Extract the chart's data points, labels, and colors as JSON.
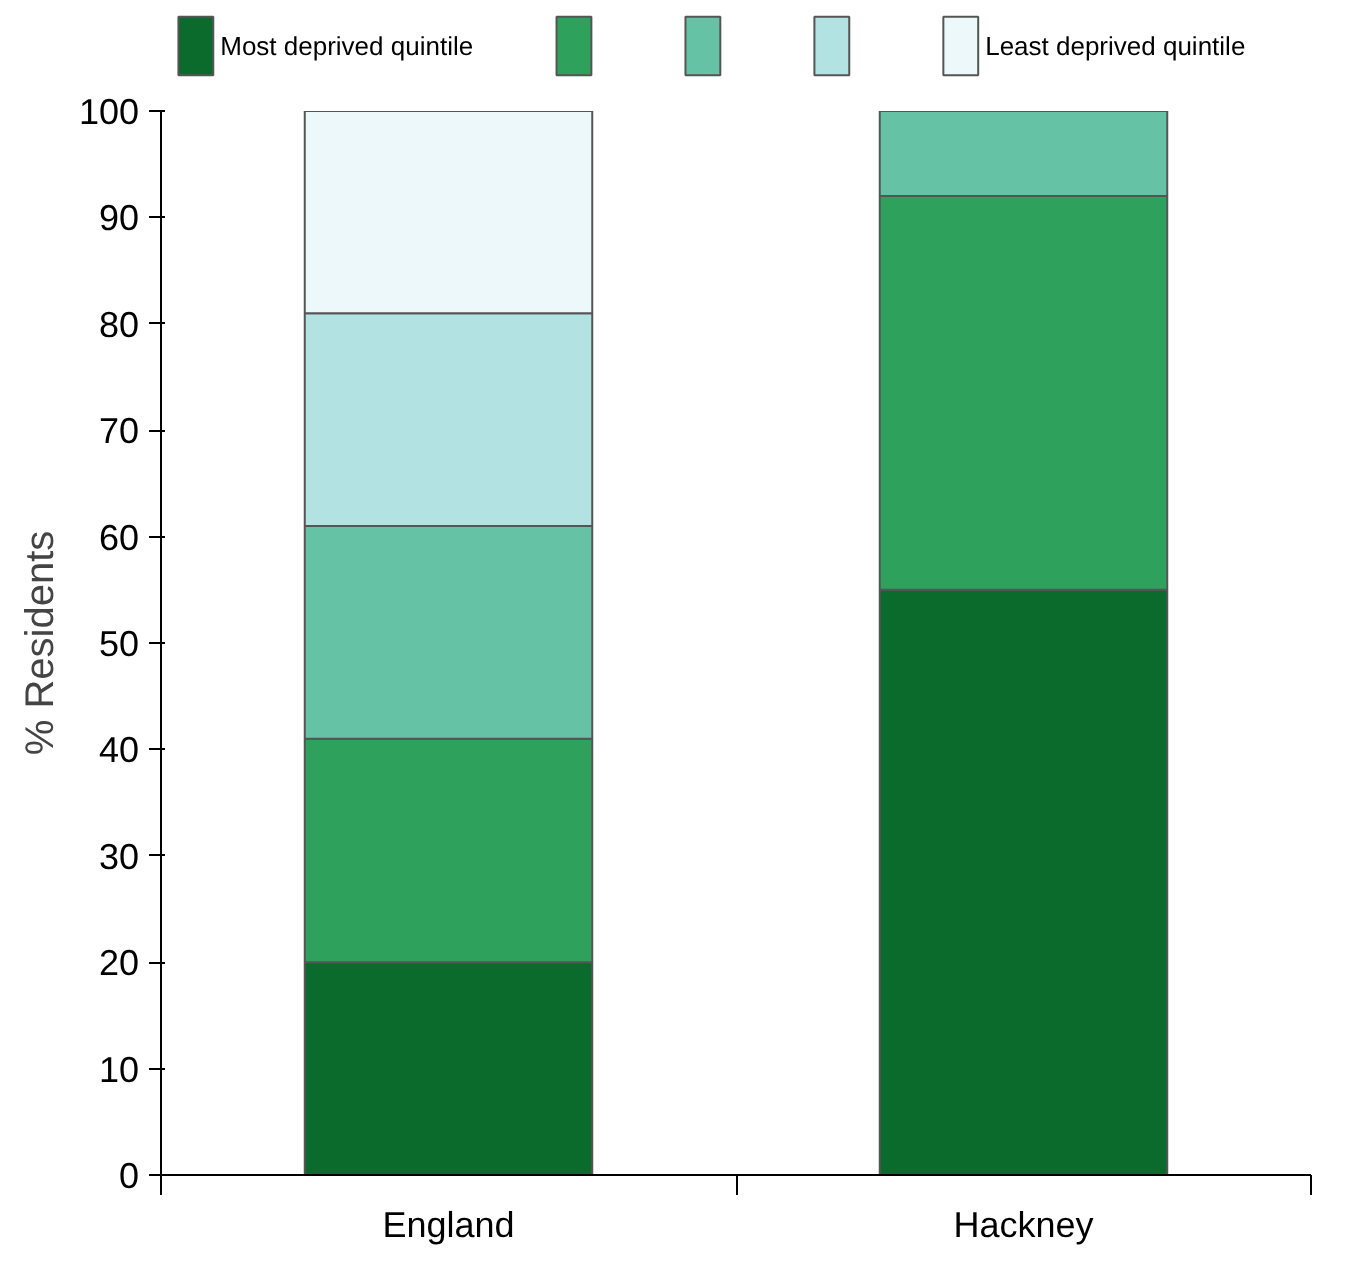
{
  "chart_data": {
    "type": "bar",
    "stacked": true,
    "ylabel": "% Residents",
    "categories": [
      "England",
      "Hackney"
    ],
    "ylim": [
      0,
      100
    ],
    "yticks": [
      0,
      10,
      20,
      30,
      40,
      50,
      60,
      70,
      80,
      90,
      100
    ],
    "legend": "top",
    "grid": false,
    "series": [
      {
        "name": "Most deprived quintile",
        "color": "#0a6b2c",
        "values": [
          20,
          55
        ]
      },
      {
        "color": "#2ea15c",
        "values": [
          21,
          37
        ]
      },
      {
        "color": "#66c2a4",
        "values": [
          20,
          8
        ]
      },
      {
        "color": "#b2e2e2",
        "values": [
          20,
          null
        ]
      },
      {
        "name": "Least deprived quintile",
        "color": "#edf8fb",
        "values": [
          19,
          null
        ]
      }
    ]
  }
}
